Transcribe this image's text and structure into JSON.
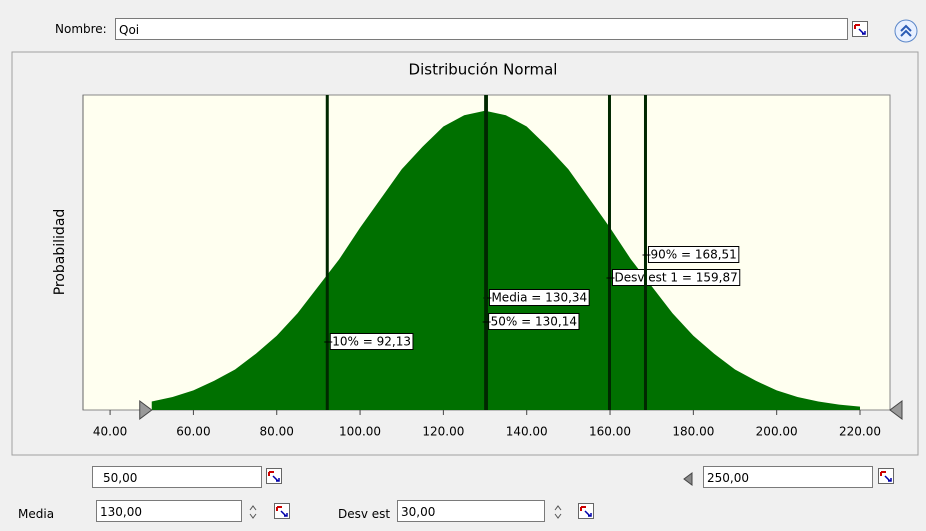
{
  "form": {
    "name_label": "Nombre:",
    "name_value": "Qoi",
    "min_value": "50,00",
    "max_value": "250,00",
    "mean_label": "Media",
    "mean_value": "130,00",
    "std_label": "Desv est",
    "std_value": "30,00"
  },
  "chart_data": {
    "type": "area",
    "title": "Distribución Normal",
    "y_label": "Probabilidad",
    "color": "#007000",
    "x": [
      50,
      55,
      60,
      65,
      70,
      75,
      80,
      85,
      90,
      95,
      100,
      105,
      110,
      115,
      120,
      125,
      130,
      135,
      140,
      145,
      150,
      155,
      160,
      165,
      170,
      175,
      180,
      185,
      190,
      195,
      200,
      205,
      210,
      215,
      220
    ],
    "values": [
      0.00038,
      0.00058,
      0.00087,
      0.0013,
      0.0018,
      0.0025,
      0.0033,
      0.0043,
      0.0055,
      0.0067,
      0.0081,
      0.0094,
      0.0107,
      0.0117,
      0.0126,
      0.0131,
      0.0133,
      0.0131,
      0.0126,
      0.0117,
      0.0107,
      0.0094,
      0.0081,
      0.0067,
      0.0055,
      0.0043,
      0.0033,
      0.0025,
      0.0018,
      0.0013,
      0.00087,
      0.00058,
      0.00038,
      0.00024,
      0.00015
    ],
    "xlim": [
      33.5,
      227.2
    ],
    "ylim": [
      0,
      0.014
    ],
    "xticks": [
      {
        "value": 40,
        "label": "40.00"
      },
      {
        "value": 60,
        "label": "60.00"
      },
      {
        "value": 80,
        "label": "80.00"
      },
      {
        "value": 100,
        "label": "100.00"
      },
      {
        "value": 120,
        "label": "120.00"
      },
      {
        "value": 140,
        "label": "140.00"
      },
      {
        "value": 160,
        "label": "160.00"
      },
      {
        "value": 180,
        "label": "180.00"
      },
      {
        "value": 200,
        "label": "200.00"
      },
      {
        "value": 220,
        "label": "220.00"
      }
    ],
    "markers": [
      {
        "value": 92.13,
        "label": "10% = 92,13"
      },
      {
        "value": 130.34,
        "label": "Media = 130,34"
      },
      {
        "value": 130.14,
        "label": "50% = 130,14"
      },
      {
        "value": 159.87,
        "label": "Desv est 1 = 159,87"
      },
      {
        "value": 168.51,
        "label": "90% = 168,51"
      }
    ]
  }
}
